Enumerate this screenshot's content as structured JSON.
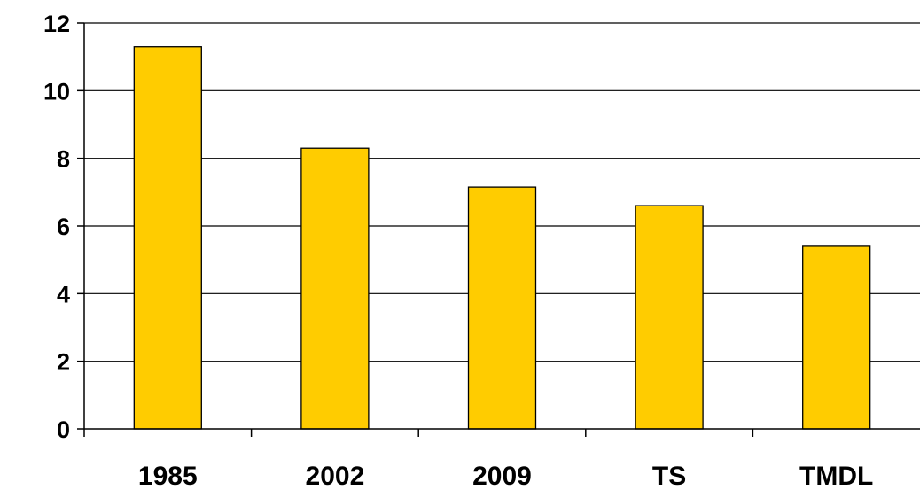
{
  "chart_data": {
    "type": "bar",
    "categories": [
      "1985",
      "2002",
      "2009",
      "TS",
      "TMDL"
    ],
    "values": [
      11.3,
      8.3,
      7.15,
      6.6,
      5.4
    ],
    "title": "",
    "xlabel": "",
    "ylabel": "",
    "ylim": [
      0,
      12
    ],
    "yticks": [
      "0",
      "2",
      "4",
      "6",
      "8",
      "10",
      "12"
    ],
    "grid": true,
    "legend": "none",
    "colors": {
      "bar": "#FFCC00",
      "bar_edge": "#000000",
      "grid": "#000000",
      "axis": "#000000"
    }
  }
}
